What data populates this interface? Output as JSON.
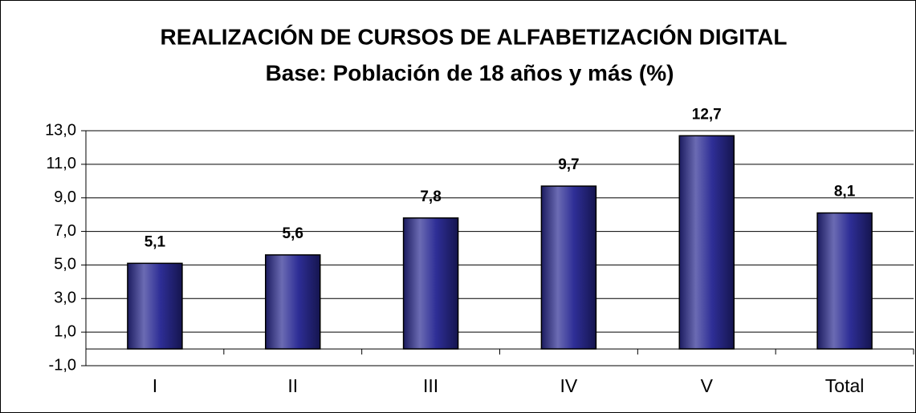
{
  "chart_data": {
    "type": "bar",
    "title": "REALIZACIÓN DE  CURSOS DE ALFABETIZACIÓN DIGITAL",
    "subtitle": "Base: Población de 18 años y más (%)",
    "categories": [
      "I",
      "II",
      "III",
      "IV",
      "V",
      "Total"
    ],
    "values": [
      5.1,
      5.6,
      7.8,
      9.7,
      12.7,
      8.1
    ],
    "value_labels": [
      "5,1",
      "5,6",
      "7,8",
      "9,7",
      "12,7",
      "8,1"
    ],
    "color": "#333399",
    "ylim": [
      -1,
      13
    ],
    "yticks": [
      {
        "value": -1,
        "label": "-1,0"
      },
      {
        "value": 1,
        "label": "1,0"
      },
      {
        "value": 3,
        "label": "3,0"
      },
      {
        "value": 5,
        "label": "5,0"
      },
      {
        "value": 7,
        "label": "7,0"
      },
      {
        "value": 9,
        "label": "9,0"
      },
      {
        "value": 11,
        "label": "11,0"
      },
      {
        "value": 13,
        "label": "13,0"
      }
    ],
    "grid": true
  }
}
